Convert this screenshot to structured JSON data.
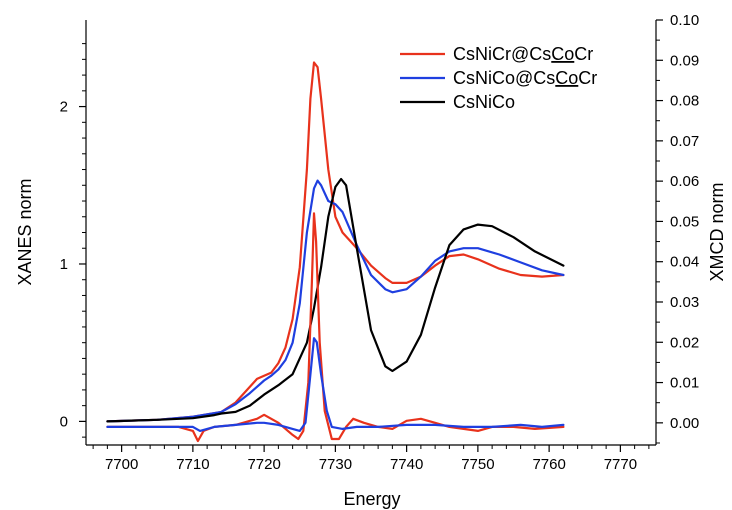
{
  "chart_data": {
    "type": "line",
    "xlabel": "Energy",
    "ylabel_left": "XANES norm",
    "ylabel_right": "XMCD norm",
    "xlim": [
      7695,
      7775
    ],
    "ylim_left": [
      -0.15,
      2.55
    ],
    "ylim_right": [
      -0.0055,
      0.1
    ],
    "x_ticks": [
      "7700",
      "7710",
      "7720",
      "7730",
      "7740",
      "7750",
      "7760",
      "7770"
    ],
    "y_left_ticks": [
      "0",
      "1",
      "2"
    ],
    "y_right_ticks": [
      "0.00",
      "0.01",
      "0.02",
      "0.03",
      "0.04",
      "0.05",
      "0.06",
      "0.07",
      "0.08",
      "0.09",
      "0.10"
    ],
    "legend": {
      "position": "top-right",
      "entries": [
        {
          "text_before": "CsNiCr@Cs",
          "underlined": "Co",
          "text_after": "Cr",
          "color": "#e8321c"
        },
        {
          "text_before": "CsNiCo@Cs",
          "underlined": "Co",
          "text_after": "Cr",
          "color": "#1f3fe0"
        },
        {
          "text_before": "CsNiCo",
          "underlined": "",
          "text_after": "",
          "color": "#000000"
        }
      ]
    },
    "series": [
      {
        "name": "CsNiCr@CsCoCr",
        "axis": "left",
        "color": "#e8321c",
        "x": [
          7698,
          7705,
          7710,
          7714,
          7716,
          7718,
          7719,
          7720,
          7721,
          7722,
          7723,
          7724,
          7725,
          7726,
          7726.5,
          7727,
          7727.5,
          7728,
          7729,
          7730,
          7731,
          7733,
          7735,
          7737,
          7738,
          7740,
          7742,
          7744,
          7746,
          7748,
          7750,
          7753,
          7756,
          7759,
          7762
        ],
        "y": [
          0.0,
          0.01,
          0.03,
          0.06,
          0.12,
          0.22,
          0.27,
          0.29,
          0.31,
          0.37,
          0.47,
          0.65,
          0.98,
          1.6,
          2.05,
          2.28,
          2.25,
          2.05,
          1.6,
          1.3,
          1.2,
          1.1,
          0.99,
          0.91,
          0.88,
          0.88,
          0.92,
          0.99,
          1.05,
          1.06,
          1.03,
          0.97,
          0.93,
          0.92,
          0.93
        ]
      },
      {
        "name": "CsNiCo@CsCoCr",
        "axis": "left",
        "color": "#1f3fe0",
        "x": [
          7698,
          7705,
          7710,
          7714,
          7716,
          7718,
          7719,
          7720,
          7721,
          7722,
          7723,
          7724,
          7725,
          7726,
          7727,
          7727.5,
          7728,
          7729,
          7730,
          7731,
          7733,
          7735,
          7737,
          7738,
          7740,
          7742,
          7744,
          7746,
          7748,
          7750,
          7753,
          7756,
          7759,
          7762
        ],
        "y": [
          0.0,
          0.01,
          0.03,
          0.06,
          0.11,
          0.18,
          0.22,
          0.26,
          0.29,
          0.33,
          0.39,
          0.5,
          0.75,
          1.2,
          1.48,
          1.53,
          1.5,
          1.4,
          1.38,
          1.33,
          1.12,
          0.93,
          0.84,
          0.82,
          0.84,
          0.92,
          1.02,
          1.08,
          1.1,
          1.1,
          1.06,
          1.01,
          0.96,
          0.93
        ]
      },
      {
        "name": "CsNiCo",
        "axis": "left",
        "color": "#000000",
        "x": [
          7698,
          7705,
          7710,
          7713,
          7714,
          7716,
          7718,
          7720,
          7722,
          7724,
          7726,
          7727,
          7728,
          7729,
          7730,
          7730.8,
          7731.5,
          7733,
          7735,
          7737,
          7738,
          7740,
          7742,
          7744,
          7746,
          7748,
          7750,
          7752,
          7755,
          7758,
          7762
        ],
        "y": [
          0.0,
          0.01,
          0.02,
          0.04,
          0.05,
          0.06,
          0.1,
          0.17,
          0.23,
          0.3,
          0.5,
          0.72,
          0.98,
          1.3,
          1.49,
          1.54,
          1.5,
          1.1,
          0.58,
          0.35,
          0.32,
          0.38,
          0.55,
          0.85,
          1.12,
          1.22,
          1.25,
          1.24,
          1.17,
          1.08,
          0.99
        ]
      },
      {
        "name": "CsNiCr@CsCoCr XMCD",
        "axis": "right",
        "color": "#e8321c",
        "x": [
          7698,
          7704,
          7708,
          7710,
          7710.7,
          7711.5,
          7713,
          7716,
          7719,
          7720,
          7722,
          7724,
          7724.8,
          7725.5,
          7726.2,
          7726.7,
          7727,
          7727.3,
          7727.8,
          7728.5,
          7729.5,
          7730.5,
          7731.5,
          7732.5,
          7734,
          7736,
          7738,
          7740,
          7742,
          7744,
          7746,
          7748,
          7750,
          7752,
          7755,
          7758,
          7762
        ],
        "y": [
          -0.001,
          -0.001,
          -0.001,
          -0.002,
          -0.0045,
          -0.002,
          -0.001,
          -0.0005,
          0.001,
          0.002,
          0.0,
          -0.003,
          -0.004,
          -0.002,
          0.01,
          0.035,
          0.052,
          0.045,
          0.02,
          0.003,
          -0.004,
          -0.004,
          -0.001,
          0.001,
          0.0,
          -0.001,
          -0.0015,
          0.0005,
          0.001,
          0.0,
          -0.001,
          -0.0015,
          -0.002,
          -0.001,
          -0.001,
          -0.0015,
          -0.001
        ]
      },
      {
        "name": "CsNiCo@CsCoCr XMCD",
        "axis": "right",
        "color": "#1f3fe0",
        "x": [
          7698,
          7704,
          7708,
          7710,
          7711,
          7713,
          7716,
          7719,
          7720,
          7722,
          7724,
          7725,
          7725.8,
          7726.5,
          7727,
          7727.4,
          7728,
          7728.8,
          7729.5,
          7731,
          7733,
          7736,
          7740,
          7744,
          7748,
          7752,
          7756,
          7759,
          7762
        ],
        "y": [
          -0.001,
          -0.001,
          -0.001,
          -0.001,
          -0.002,
          -0.001,
          -0.0005,
          0.0,
          0.0,
          -0.0005,
          -0.0015,
          -0.002,
          0.0,
          0.012,
          0.021,
          0.02,
          0.012,
          0.003,
          -0.001,
          -0.0015,
          -0.001,
          -0.001,
          -0.0005,
          -0.0005,
          -0.001,
          -0.001,
          -0.0005,
          -0.001,
          -0.0005
        ]
      }
    ]
  }
}
